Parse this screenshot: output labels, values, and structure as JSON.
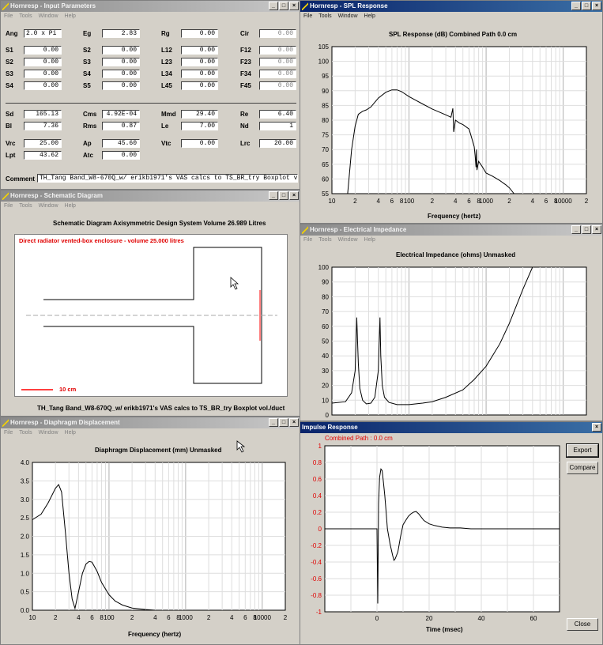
{
  "input_window": {
    "title": "Hornresp - Input Parameters",
    "menu": [
      "File",
      "Tools",
      "Window",
      "Help"
    ],
    "params": [
      {
        "label": "Ang",
        "value": "2.0 x Pi",
        "gray": false
      },
      {
        "label": "Eg",
        "value": "2.83",
        "gray": false
      },
      {
        "label": "Rg",
        "value": "0.00",
        "gray": false
      },
      {
        "label": "Cir",
        "value": "0.00",
        "gray": true
      },
      {
        "label": "S1",
        "value": "0.00",
        "gray": false
      },
      {
        "label": "S2",
        "value": "0.00",
        "gray": false
      },
      {
        "label": "L12",
        "value": "0.00",
        "gray": false
      },
      {
        "label": "F12",
        "value": "0.00",
        "gray": true
      },
      {
        "label": "S2",
        "value": "0.00",
        "gray": false
      },
      {
        "label": "S3",
        "value": "0.00",
        "gray": false
      },
      {
        "label": "L23",
        "value": "0.00",
        "gray": false
      },
      {
        "label": "F23",
        "value": "0.00",
        "gray": true
      },
      {
        "label": "S3",
        "value": "0.00",
        "gray": false
      },
      {
        "label": "S4",
        "value": "0.00",
        "gray": false
      },
      {
        "label": "L34",
        "value": "0.00",
        "gray": false
      },
      {
        "label": "F34",
        "value": "0.00",
        "gray": true
      },
      {
        "label": "S4",
        "value": "0.00",
        "gray": false
      },
      {
        "label": "S5",
        "value": "0.00",
        "gray": false
      },
      {
        "label": "L45",
        "value": "0.00",
        "gray": false
      },
      {
        "label": "F45",
        "value": "0.00",
        "gray": true
      },
      {
        "label": "Sd",
        "value": "165.13",
        "gray": false
      },
      {
        "label": "Cms",
        "value": "4.92E-04",
        "gray": false
      },
      {
        "label": "Mmd",
        "value": "29.40",
        "gray": false
      },
      {
        "label": "Re",
        "value": "6.40",
        "gray": false
      },
      {
        "label": "Bl",
        "value": "7.36",
        "gray": false
      },
      {
        "label": "Rms",
        "value": "0.87",
        "gray": false
      },
      {
        "label": "Le",
        "value": "7.00",
        "gray": false
      },
      {
        "label": "Nd",
        "value": "1",
        "gray": false
      },
      {
        "label": "Vrc",
        "value": "25.00",
        "gray": false
      },
      {
        "label": "Ap",
        "value": "45.60",
        "gray": false
      },
      {
        "label": "Vtc",
        "value": "0.00",
        "gray": false
      },
      {
        "label": "Lrc",
        "value": "20.00",
        "gray": false
      },
      {
        "label": "Lpt",
        "value": "43.62",
        "gray": false
      },
      {
        "label": "Atc",
        "value": "0.00",
        "gray": false
      }
    ],
    "comment_label": "Comment",
    "comment_value": "TH_Tang Band_W8-670Q_w/ erikb1971's VAS calcs to TS_BR_try Boxplot vol./duct"
  },
  "spl_window": {
    "title": "Hornresp - SPL Response",
    "menu": [
      "File",
      "Tools",
      "Window",
      "Help"
    ],
    "chart_title": "SPL Response (dB)   Combined   Path 0.0 cm",
    "xlabel": "Frequency (hertz)",
    "y_ticks": [
      "105",
      "100",
      "95",
      "90",
      "85",
      "80",
      "75",
      "70",
      "65",
      "60",
      "55"
    ],
    "x_ticks": [
      "10",
      "2",
      "4",
      "6",
      "8",
      "100",
      "2",
      "4",
      "6",
      "8",
      "1000",
      "2",
      "4",
      "6",
      "8",
      "10000",
      "2"
    ]
  },
  "schematic_window": {
    "title": "Hornresp - Schematic Diagram",
    "menu": [
      "File",
      "Tools",
      "Window",
      "Help"
    ],
    "heading": "Schematic Diagram   Axisymmetric Design   System Volume 26.989 Litres",
    "red_caption": "Direct radiator vented-box enclosure - volume 25.000 litres",
    "scale_label": "10 cm",
    "footer": "TH_Tang Band_W8-670Q_w/ erikb1971's VAS calcs to TS_BR_try Boxplot vol./duct"
  },
  "impedance_window": {
    "title": "Hornresp - Electrical Impedance",
    "menu": [
      "File",
      "Tools",
      "Window",
      "Help"
    ],
    "chart_title": "Electrical Impedance (ohms)   Unmasked",
    "y_ticks": [
      "100",
      "90",
      "80",
      "70",
      "60",
      "50",
      "40",
      "30",
      "20",
      "10",
      "0"
    ]
  },
  "displacement_window": {
    "title": "Hornresp - Diaphragm Displacement",
    "menu": [
      "File",
      "Tools",
      "Window",
      "Help"
    ],
    "chart_title": "Diaphragm Displacement (mm)   Unmasked",
    "xlabel": "Frequency (hertz)",
    "y_ticks": [
      "4.0",
      "3.5",
      "3.0",
      "2.5",
      "2.0",
      "1.5",
      "1.0",
      "0.5",
      "0.0"
    ],
    "x_ticks": [
      "10",
      "2",
      "4",
      "6",
      "8",
      "100",
      "2",
      "4",
      "6",
      "8",
      "1000",
      "2",
      "4",
      "6",
      "8",
      "10000",
      "2"
    ]
  },
  "impulse_window": {
    "title": "Impulse Response",
    "subtitle": "Combined    Path : 0.0 cm",
    "xlabel": "Time (msec)",
    "y_ticks": [
      "1",
      "0.8",
      "0.6",
      "0.4",
      "0.2",
      "0",
      "-0.2",
      "-0.4",
      "-0.6",
      "-0.8",
      "-1"
    ],
    "x_ticks": [
      "0",
      "20",
      "40",
      "60"
    ],
    "export_button": "Export",
    "compare_button": "Compare",
    "close_button": "Close"
  },
  "colors": {
    "active_title": "#0a246a",
    "red_text": "#e00000",
    "schematic_red": "#ff0000"
  },
  "chart_data": [
    {
      "type": "line",
      "title": "SPL Response (dB)   Combined   Path 0.0 cm",
      "xlabel": "Frequency (hertz)",
      "ylabel": "",
      "xscale": "log",
      "xlim": [
        10,
        20000
      ],
      "ylim": [
        55,
        105
      ],
      "grid": true,
      "series": [
        {
          "x": [
            16,
            18,
            20,
            22,
            25,
            28,
            32,
            40,
            50,
            60,
            70,
            80,
            100,
            150,
            200,
            300,
            350,
            370,
            380,
            390,
            400,
            450,
            500,
            600,
            650,
            700,
            720,
            740,
            750,
            760,
            800,
            850,
            900,
            1000,
            1200,
            1500,
            1800,
            2000,
            2300
          ],
          "y": [
            55,
            70,
            78,
            82,
            83,
            83.5,
            84.5,
            87.5,
            89.5,
            90.3,
            90.3,
            89.7,
            88,
            85.5,
            83.8,
            81.8,
            81,
            84,
            76,
            78,
            80,
            79,
            78.5,
            77,
            74,
            71,
            68,
            64,
            70,
            63,
            66,
            65,
            64,
            62,
            61,
            59.5,
            58,
            57,
            55
          ]
        }
      ]
    },
    {
      "type": "line",
      "title": "Electrical Impedance (ohms)   Unmasked",
      "xscale": "log",
      "xlim": [
        10,
        20000
      ],
      "ylim": [
        0,
        100
      ],
      "grid": true,
      "series": [
        {
          "x": [
            10,
            15,
            18,
            20,
            21,
            22,
            23,
            25,
            28,
            32,
            36,
            40,
            42,
            43,
            45,
            48,
            55,
            70,
            100,
            150,
            200,
            300,
            500,
            700,
            1000,
            1500,
            2000,
            3000,
            4000
          ],
          "y": [
            8,
            9,
            15,
            30,
            66,
            35,
            18,
            10,
            7.5,
            8,
            12,
            30,
            66,
            40,
            20,
            12,
            8.5,
            7,
            7,
            8,
            9,
            12,
            17,
            24,
            33,
            48,
            62,
            85,
            100
          ]
        }
      ]
    },
    {
      "type": "line",
      "title": "Diaphragm Displacement (mm)   Unmasked",
      "xlabel": "Frequency (hertz)",
      "xscale": "log",
      "xlim": [
        10,
        20000
      ],
      "ylim": [
        0,
        4
      ],
      "grid": true,
      "series": [
        {
          "x": [
            10,
            13,
            16,
            20,
            22,
            24,
            27,
            30,
            33,
            36,
            40,
            45,
            50,
            55,
            60,
            70,
            80,
            100,
            120,
            150,
            200,
            300,
            400
          ],
          "y": [
            2.45,
            2.6,
            2.9,
            3.3,
            3.4,
            3.2,
            2.1,
            1.0,
            0.3,
            0.05,
            0.5,
            1.0,
            1.25,
            1.32,
            1.3,
            1.05,
            0.75,
            0.42,
            0.25,
            0.14,
            0.06,
            0.02,
            0.0
          ]
        }
      ]
    },
    {
      "type": "line",
      "title": "Impulse Response",
      "xlabel": "Time (msec)",
      "xlim": [
        -20,
        70
      ],
      "ylim": [
        -1,
        1
      ],
      "grid": true,
      "series": [
        {
          "x": [
            -20,
            0,
            0.3,
            0.6,
            1,
            1.5,
            2,
            2.5,
            3,
            3.5,
            4,
            5,
            6,
            6.5,
            7,
            8,
            9,
            10,
            11,
            12,
            13,
            14,
            15,
            16,
            17,
            18,
            20,
            22,
            25,
            28,
            32,
            36,
            40,
            50,
            60,
            70
          ],
          "y": [
            0,
            0,
            -0.9,
            0.3,
            0.62,
            0.72,
            0.7,
            0.55,
            0.4,
            0.2,
            0.0,
            -0.18,
            -0.32,
            -0.38,
            -0.36,
            -0.28,
            -0.1,
            0.05,
            0.1,
            0.15,
            0.18,
            0.2,
            0.21,
            0.18,
            0.14,
            0.1,
            0.06,
            0.04,
            0.02,
            0.01,
            0.01,
            0.0,
            0.0,
            0.0,
            0.0,
            0.0
          ]
        }
      ]
    }
  ]
}
